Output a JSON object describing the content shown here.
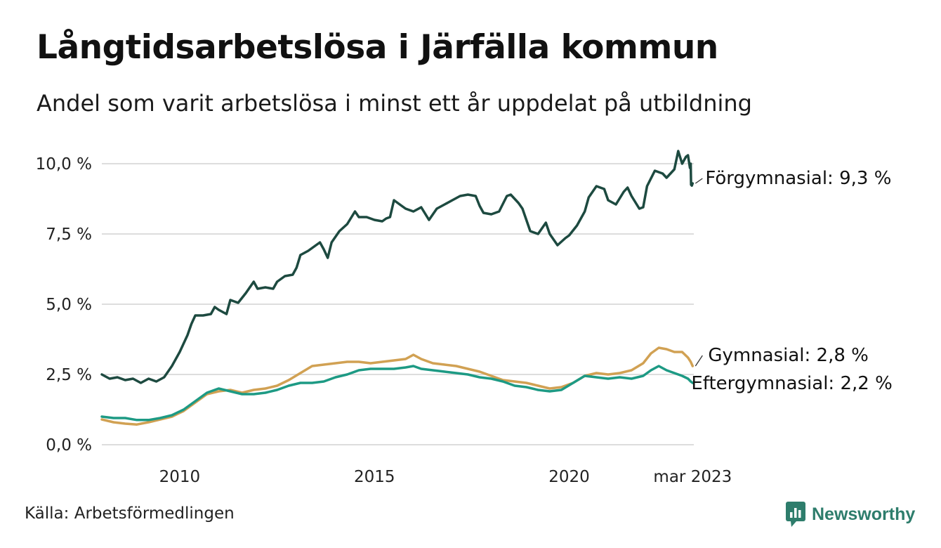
{
  "title": "Långtidsarbetslösa i Järfälla kommun",
  "subtitle": "Andel som varit arbetslösa i minst ett år uppdelat på utbildning",
  "source": "Källa: Arbetsförmedlingen",
  "brand": "Newsworthy",
  "colors": {
    "forgymnasial": "#1d4a40",
    "gymnasial": "#d1a153",
    "eftergymnasial": "#1d9a84",
    "grid": "#dddddd",
    "brand": "#2e7d6c"
  },
  "chart_data": {
    "type": "line",
    "title": "Långtidsarbetslösa i Järfälla kommun",
    "subtitle": "Andel som varit arbetslösa i minst ett år uppdelat på utbildning",
    "xlabel": "",
    "ylabel": "",
    "ylim": [
      0,
      10.5
    ],
    "xlim": [
      2008.0,
      2023.2
    ],
    "x_ticks": [
      {
        "value": 2010,
        "label": "2010"
      },
      {
        "value": 2015,
        "label": "2015"
      },
      {
        "value": 2020,
        "label": "2020"
      },
      {
        "value": 2023.17,
        "label": "mar 2023"
      }
    ],
    "y_ticks": [
      {
        "value": 0,
        "label": "0,0 %"
      },
      {
        "value": 2.5,
        "label": "2,5 %"
      },
      {
        "value": 5,
        "label": "5,0 %"
      },
      {
        "value": 7.5,
        "label": "7,5 %"
      },
      {
        "value": 10,
        "label": "10,0 %"
      }
    ],
    "grid": true,
    "legend": "end-of-line labels",
    "series": [
      {
        "name": "Förgymnasial",
        "end_label": "Förgymnasial: 9,3 %",
        "color": "#1d4a40",
        "points": [
          [
            2008.0,
            2.5
          ],
          [
            2008.2,
            2.35
          ],
          [
            2008.4,
            2.4
          ],
          [
            2008.6,
            2.3
          ],
          [
            2008.8,
            2.35
          ],
          [
            2009.0,
            2.2
          ],
          [
            2009.2,
            2.35
          ],
          [
            2009.4,
            2.25
          ],
          [
            2009.6,
            2.4
          ],
          [
            2009.8,
            2.8
          ],
          [
            2010.0,
            3.3
          ],
          [
            2010.2,
            3.9
          ],
          [
            2010.3,
            4.3
          ],
          [
            2010.4,
            4.6
          ],
          [
            2010.6,
            4.6
          ],
          [
            2010.8,
            4.65
          ],
          [
            2010.9,
            4.9
          ],
          [
            2011.0,
            4.8
          ],
          [
            2011.2,
            4.65
          ],
          [
            2011.3,
            5.15
          ],
          [
            2011.5,
            5.05
          ],
          [
            2011.7,
            5.4
          ],
          [
            2011.9,
            5.8
          ],
          [
            2012.0,
            5.55
          ],
          [
            2012.2,
            5.6
          ],
          [
            2012.4,
            5.55
          ],
          [
            2012.5,
            5.8
          ],
          [
            2012.7,
            6.0
          ],
          [
            2012.9,
            6.05
          ],
          [
            2013.0,
            6.3
          ],
          [
            2013.1,
            6.75
          ],
          [
            2013.3,
            6.9
          ],
          [
            2013.5,
            7.1
          ],
          [
            2013.6,
            7.2
          ],
          [
            2013.7,
            6.95
          ],
          [
            2013.8,
            6.65
          ],
          [
            2013.9,
            7.2
          ],
          [
            2014.1,
            7.6
          ],
          [
            2014.3,
            7.85
          ],
          [
            2014.5,
            8.3
          ],
          [
            2014.6,
            8.1
          ],
          [
            2014.8,
            8.1
          ],
          [
            2015.0,
            8.0
          ],
          [
            2015.2,
            7.95
          ],
          [
            2015.3,
            8.05
          ],
          [
            2015.4,
            8.1
          ],
          [
            2015.5,
            8.7
          ],
          [
            2015.7,
            8.5
          ],
          [
            2015.8,
            8.4
          ],
          [
            2016.0,
            8.3
          ],
          [
            2016.2,
            8.45
          ],
          [
            2016.4,
            8.0
          ],
          [
            2016.6,
            8.4
          ],
          [
            2016.8,
            8.55
          ],
          [
            2017.0,
            8.7
          ],
          [
            2017.2,
            8.85
          ],
          [
            2017.4,
            8.9
          ],
          [
            2017.6,
            8.85
          ],
          [
            2017.7,
            8.5
          ],
          [
            2017.8,
            8.25
          ],
          [
            2018.0,
            8.2
          ],
          [
            2018.2,
            8.3
          ],
          [
            2018.4,
            8.85
          ],
          [
            2018.5,
            8.9
          ],
          [
            2018.7,
            8.6
          ],
          [
            2018.8,
            8.4
          ],
          [
            2019.0,
            7.6
          ],
          [
            2019.2,
            7.5
          ],
          [
            2019.4,
            7.9
          ],
          [
            2019.5,
            7.5
          ],
          [
            2019.7,
            7.1
          ],
          [
            2019.9,
            7.35
          ],
          [
            2020.0,
            7.45
          ],
          [
            2020.2,
            7.8
          ],
          [
            2020.4,
            8.3
          ],
          [
            2020.5,
            8.8
          ],
          [
            2020.7,
            9.2
          ],
          [
            2020.9,
            9.1
          ],
          [
            2021.0,
            8.7
          ],
          [
            2021.2,
            8.55
          ],
          [
            2021.4,
            9.0
          ],
          [
            2021.5,
            9.15
          ],
          [
            2021.6,
            8.85
          ],
          [
            2021.8,
            8.4
          ],
          [
            2021.9,
            8.45
          ],
          [
            2022.0,
            9.2
          ],
          [
            2022.2,
            9.75
          ],
          [
            2022.4,
            9.65
          ],
          [
            2022.5,
            9.5
          ],
          [
            2022.7,
            9.8
          ],
          [
            2022.8,
            10.45
          ],
          [
            2022.9,
            10.0
          ],
          [
            2023.0,
            10.25
          ],
          [
            2023.05,
            10.3
          ],
          [
            2023.1,
            9.85
          ],
          [
            2023.12,
            10.0
          ],
          [
            2023.13,
            9.25
          ],
          [
            2023.15,
            9.22
          ],
          [
            2023.17,
            9.3
          ]
        ]
      },
      {
        "name": "Gymnasial",
        "end_label": "Gymnasial: 2,8 %",
        "color": "#d1a153",
        "points": [
          [
            2008.0,
            0.9
          ],
          [
            2008.3,
            0.8
          ],
          [
            2008.6,
            0.75
          ],
          [
            2008.9,
            0.72
          ],
          [
            2009.2,
            0.8
          ],
          [
            2009.5,
            0.9
          ],
          [
            2009.8,
            1.0
          ],
          [
            2010.1,
            1.2
          ],
          [
            2010.4,
            1.5
          ],
          [
            2010.7,
            1.8
          ],
          [
            2011.0,
            1.9
          ],
          [
            2011.3,
            1.95
          ],
          [
            2011.6,
            1.85
          ],
          [
            2011.9,
            1.95
          ],
          [
            2012.2,
            2.0
          ],
          [
            2012.5,
            2.1
          ],
          [
            2012.8,
            2.3
          ],
          [
            2013.1,
            2.55
          ],
          [
            2013.4,
            2.8
          ],
          [
            2013.7,
            2.85
          ],
          [
            2014.0,
            2.9
          ],
          [
            2014.3,
            2.95
          ],
          [
            2014.6,
            2.95
          ],
          [
            2014.9,
            2.9
          ],
          [
            2015.2,
            2.95
          ],
          [
            2015.5,
            3.0
          ],
          [
            2015.8,
            3.05
          ],
          [
            2016.0,
            3.2
          ],
          [
            2016.2,
            3.05
          ],
          [
            2016.5,
            2.9
          ],
          [
            2016.8,
            2.85
          ],
          [
            2017.1,
            2.8
          ],
          [
            2017.4,
            2.7
          ],
          [
            2017.7,
            2.6
          ],
          [
            2018.0,
            2.45
          ],
          [
            2018.3,
            2.3
          ],
          [
            2018.6,
            2.25
          ],
          [
            2018.9,
            2.2
          ],
          [
            2019.2,
            2.1
          ],
          [
            2019.5,
            2.0
          ],
          [
            2019.8,
            2.05
          ],
          [
            2020.1,
            2.2
          ],
          [
            2020.4,
            2.45
          ],
          [
            2020.7,
            2.55
          ],
          [
            2021.0,
            2.5
          ],
          [
            2021.3,
            2.55
          ],
          [
            2021.6,
            2.65
          ],
          [
            2021.9,
            2.9
          ],
          [
            2022.1,
            3.25
          ],
          [
            2022.3,
            3.45
          ],
          [
            2022.5,
            3.4
          ],
          [
            2022.7,
            3.3
          ],
          [
            2022.9,
            3.3
          ],
          [
            2023.05,
            3.1
          ],
          [
            2023.12,
            2.95
          ],
          [
            2023.17,
            2.8
          ]
        ]
      },
      {
        "name": "Eftergymnasial",
        "end_label": "Eftergymnasial: 2,2 %",
        "color": "#1d9a84",
        "points": [
          [
            2008.0,
            1.0
          ],
          [
            2008.3,
            0.95
          ],
          [
            2008.6,
            0.95
          ],
          [
            2008.9,
            0.88
          ],
          [
            2009.2,
            0.88
          ],
          [
            2009.5,
            0.95
          ],
          [
            2009.8,
            1.05
          ],
          [
            2010.1,
            1.25
          ],
          [
            2010.4,
            1.55
          ],
          [
            2010.7,
            1.85
          ],
          [
            2011.0,
            2.0
          ],
          [
            2011.3,
            1.9
          ],
          [
            2011.6,
            1.8
          ],
          [
            2011.9,
            1.8
          ],
          [
            2012.2,
            1.85
          ],
          [
            2012.5,
            1.95
          ],
          [
            2012.8,
            2.1
          ],
          [
            2013.1,
            2.2
          ],
          [
            2013.4,
            2.2
          ],
          [
            2013.7,
            2.25
          ],
          [
            2014.0,
            2.4
          ],
          [
            2014.3,
            2.5
          ],
          [
            2014.6,
            2.65
          ],
          [
            2014.9,
            2.7
          ],
          [
            2015.2,
            2.7
          ],
          [
            2015.5,
            2.7
          ],
          [
            2015.8,
            2.75
          ],
          [
            2016.0,
            2.8
          ],
          [
            2016.2,
            2.7
          ],
          [
            2016.5,
            2.65
          ],
          [
            2016.8,
            2.6
          ],
          [
            2017.1,
            2.55
          ],
          [
            2017.4,
            2.5
          ],
          [
            2017.7,
            2.4
          ],
          [
            2018.0,
            2.35
          ],
          [
            2018.3,
            2.25
          ],
          [
            2018.6,
            2.1
          ],
          [
            2018.9,
            2.05
          ],
          [
            2019.2,
            1.95
          ],
          [
            2019.5,
            1.9
          ],
          [
            2019.8,
            1.95
          ],
          [
            2020.1,
            2.2
          ],
          [
            2020.4,
            2.45
          ],
          [
            2020.7,
            2.4
          ],
          [
            2021.0,
            2.35
          ],
          [
            2021.3,
            2.4
          ],
          [
            2021.6,
            2.35
          ],
          [
            2021.9,
            2.45
          ],
          [
            2022.1,
            2.65
          ],
          [
            2022.3,
            2.8
          ],
          [
            2022.5,
            2.65
          ],
          [
            2022.7,
            2.55
          ],
          [
            2022.9,
            2.45
          ],
          [
            2023.05,
            2.35
          ],
          [
            2023.12,
            2.25
          ],
          [
            2023.17,
            2.2
          ]
        ]
      }
    ]
  }
}
